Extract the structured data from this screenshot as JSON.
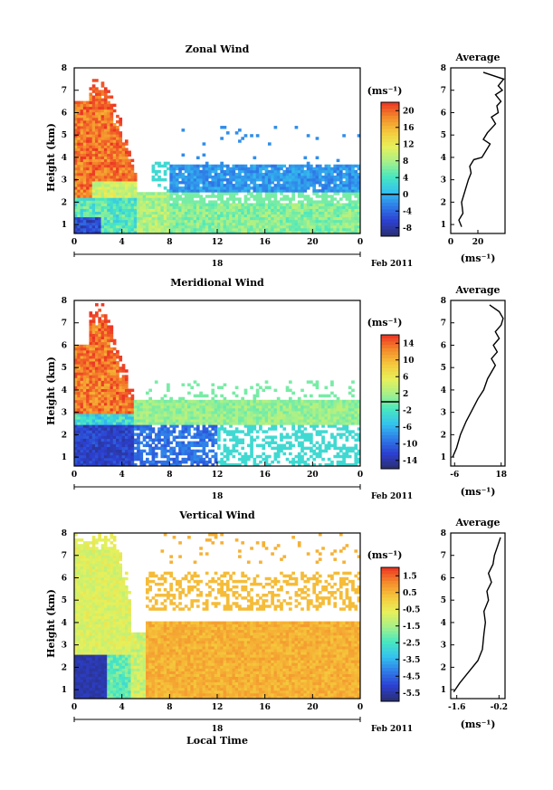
{
  "colors": {
    "scale": [
      "#2a2f6e",
      "#2c3fd0",
      "#2f7be8",
      "#34c3ee",
      "#48e8c0",
      "#a6f08a",
      "#e7f05a",
      "#f5c93c",
      "#f48a2b",
      "#ec3224"
    ],
    "mask": "#ffffff"
  },
  "figure": {
    "date_label": "Feb 2011",
    "day_label": "18",
    "xlabel_bottom": "Local Time",
    "avg_title": "Average",
    "unit_label": "(ms⁻¹)"
  },
  "chart_data": [
    {
      "type": "heatmap",
      "title": "Zonal Wind",
      "ylabel": "Height (km)",
      "xlabel": "",
      "x_ticks": [
        "0",
        "4",
        "8",
        "12",
        "16",
        "20",
        "0"
      ],
      "xlim": [
        0,
        24
      ],
      "y_ticks": [
        "1",
        "2",
        "3",
        "4",
        "5",
        "6",
        "7",
        "8"
      ],
      "ylim": [
        0.6,
        8
      ],
      "colorbar": {
        "ticks": [
          "20",
          "16",
          "12",
          "8",
          "4",
          "0",
          "-4",
          "-8"
        ],
        "range": [
          -10,
          22
        ],
        "zero_line": 0
      },
      "pattern": "zonal",
      "profile": {
        "type": "line",
        "title": "Average",
        "xlabel": "(ms⁻¹)",
        "x_ticks": [
          "0",
          "20"
        ],
        "xlim": [
          0,
          40
        ],
        "ylim": [
          0.6,
          8
        ],
        "points": [
          [
            8,
            0.9
          ],
          [
            6,
            1.2
          ],
          [
            9,
            1.5
          ],
          [
            8,
            2
          ],
          [
            10,
            2.4
          ],
          [
            13,
            3
          ],
          [
            15,
            3.3
          ],
          [
            14,
            3.6
          ],
          [
            17,
            3.9
          ],
          [
            23,
            4
          ],
          [
            26,
            4.3
          ],
          [
            29,
            4.6
          ],
          [
            24,
            4.8
          ],
          [
            27,
            5.1
          ],
          [
            30,
            5.3
          ],
          [
            33,
            5.5
          ],
          [
            30,
            5.8
          ],
          [
            35,
            6
          ],
          [
            34,
            6.3
          ],
          [
            37,
            6.5
          ],
          [
            33,
            6.8
          ],
          [
            38,
            7
          ],
          [
            35,
            7.2
          ],
          [
            39,
            7.5
          ],
          [
            24,
            7.8
          ]
        ]
      }
    },
    {
      "type": "heatmap",
      "title": "Meridional Wind",
      "ylabel": "Height (km)",
      "xlabel": "",
      "x_ticks": [
        "0",
        "4",
        "8",
        "12",
        "16",
        "20",
        "0"
      ],
      "xlim": [
        0,
        24
      ],
      "y_ticks": [
        "1",
        "2",
        "3",
        "4",
        "5",
        "6",
        "7",
        "8"
      ],
      "ylim": [
        0.6,
        8
      ],
      "colorbar": {
        "ticks": [
          "14",
          "10",
          "6",
          "2",
          "-2",
          "-6",
          "-10",
          "-14"
        ],
        "range": [
          -16,
          16
        ],
        "zero_line": 0
      },
      "pattern": "meridional",
      "profile": {
        "type": "line",
        "title": "Average",
        "xlabel": "(ms⁻¹)",
        "x_ticks": [
          "-6",
          "18"
        ],
        "xlim": [
          -8,
          20
        ],
        "ylim": [
          0.6,
          8
        ],
        "points": [
          [
            -7,
            1
          ],
          [
            -5,
            1.4
          ],
          [
            -3,
            2
          ],
          [
            0,
            2.6
          ],
          [
            3,
            3.1
          ],
          [
            6,
            3.6
          ],
          [
            9,
            4
          ],
          [
            11,
            4.5
          ],
          [
            13,
            4.8
          ],
          [
            15,
            5.1
          ],
          [
            13,
            5.4
          ],
          [
            16,
            5.7
          ],
          [
            14,
            6
          ],
          [
            17,
            6.3
          ],
          [
            15,
            6.6
          ],
          [
            18,
            6.9
          ],
          [
            19,
            7.2
          ],
          [
            17,
            7.5
          ],
          [
            12,
            7.8
          ]
        ]
      }
    },
    {
      "type": "heatmap",
      "title": "Vertical Wind",
      "ylabel": "Height (km)",
      "xlabel": "Local Time",
      "x_ticks": [
        "0",
        "4",
        "8",
        "12",
        "16",
        "20",
        "0"
      ],
      "xlim": [
        0,
        24
      ],
      "y_ticks": [
        "1",
        "2",
        "3",
        "4",
        "5",
        "6",
        "7",
        "8"
      ],
      "ylim": [
        0.6,
        8
      ],
      "colorbar": {
        "ticks": [
          "1.5",
          "0.5",
          "-0.5",
          "-1.5",
          "-2.5",
          "-3.5",
          "-4.5",
          "-5.5"
        ],
        "range": [
          -6,
          2
        ],
        "zero_line": null
      },
      "pattern": "vertical",
      "profile": {
        "type": "line",
        "title": "Average",
        "xlabel": "(ms⁻¹)",
        "x_ticks": [
          "-1.6",
          "-0.2"
        ],
        "xlim": [
          -1.8,
          0
        ],
        "ylim": [
          0.6,
          8
        ],
        "points": [
          [
            -1.7,
            0.9
          ],
          [
            -1.5,
            1.3
          ],
          [
            -1.2,
            1.8
          ],
          [
            -0.9,
            2.3
          ],
          [
            -0.75,
            2.8
          ],
          [
            -0.7,
            3.5
          ],
          [
            -0.65,
            4
          ],
          [
            -0.7,
            4.5
          ],
          [
            -0.55,
            5
          ],
          [
            -0.6,
            5.4
          ],
          [
            -0.45,
            5.8
          ],
          [
            -0.55,
            6.2
          ],
          [
            -0.4,
            6.6
          ],
          [
            -0.35,
            7
          ],
          [
            -0.25,
            7.4
          ],
          [
            -0.15,
            7.8
          ]
        ]
      }
    }
  ]
}
